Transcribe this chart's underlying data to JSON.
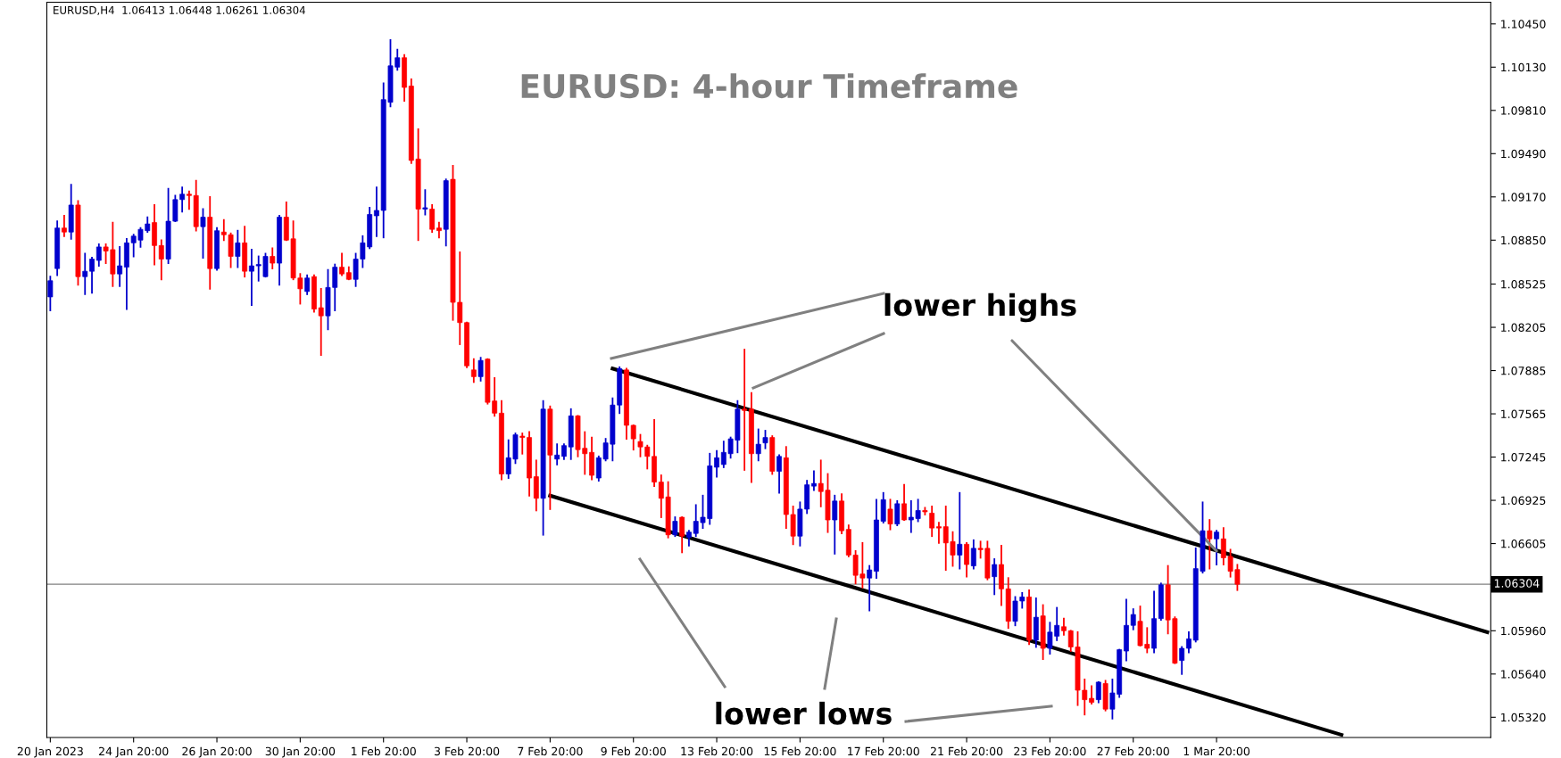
{
  "chart_data": {
    "type": "candlestick",
    "title": "EURUSD: 4-hour Timeframe",
    "annotations": [
      "EURUSD,H4  1.06413 1.06448 1.06261 1.06304",
      {
        "text": "lower highs",
        "x": "1 Mar 20:00",
        "y": 1.0655
      },
      "lower lows"
    ],
    "categories": [
      "20 Jan 2023",
      null,
      null,
      null,
      null,
      null,
      null,
      null,
      null,
      null,
      null,
      null,
      "24 Jan 20:00",
      null,
      null,
      null,
      null,
      null,
      null,
      null,
      null,
      null,
      null,
      null,
      "26 Jan 20:00",
      null,
      null,
      null,
      null,
      null,
      null,
      null,
      null,
      null,
      null,
      null,
      "30 Jan 20:00",
      null,
      null,
      null,
      null,
      null,
      null,
      null,
      null,
      null,
      null,
      null,
      "1 Feb 20:00",
      null,
      null,
      null,
      null,
      null,
      null,
      null,
      null,
      null,
      null,
      null,
      "3 Feb 20:00",
      null,
      null,
      null,
      null,
      null,
      null,
      null,
      null,
      null,
      null,
      null,
      "7 Feb 20:00",
      null,
      null,
      null,
      null,
      null,
      null,
      null,
      null,
      null,
      null,
      null,
      "9 Feb 20:00",
      null,
      null,
      null,
      null,
      null,
      null,
      null,
      null,
      null,
      null,
      null,
      "13 Feb 20:00",
      null,
      null,
      null,
      null,
      null,
      null,
      null,
      null,
      null,
      null,
      null,
      "15 Feb 20:00",
      null,
      null,
      null,
      null,
      null,
      null,
      null,
      null,
      null,
      null,
      null,
      "17 Feb 20:00",
      null,
      null,
      null,
      null,
      null,
      null,
      null,
      null,
      null,
      null,
      null,
      "21 Feb 20:00",
      null,
      null,
      null,
      null,
      null,
      null,
      null,
      null,
      null,
      null,
      null,
      "23 Feb 20:00",
      null,
      null,
      null,
      null,
      null,
      null,
      null,
      null,
      null,
      null,
      null,
      "27 Feb 20:00",
      null,
      null,
      null,
      null,
      null,
      null,
      null,
      null,
      null,
      null,
      null,
      "1 Mar 20:00",
      null,
      null,
      null,
      null,
      null,
      null,
      null,
      null,
      null,
      null,
      null,
      null,
      null,
      null,
      null,
      null,
      null,
      null,
      null,
      null,
      null,
      null,
      null,
      null,
      null,
      null,
      null,
      null,
      null,
      null,
      null,
      null,
      null,
      null,
      null,
      null,
      null,
      null,
      null
    ],
    "ohlc": [
      [
        1.0843,
        1.0858,
        1.0833,
        1.0855
      ],
      [
        1.0864,
        1.0899,
        1.0859,
        1.0894
      ],
      [
        1.0894,
        1.0903,
        1.0888,
        1.0891
      ],
      [
        1.0891,
        1.0926,
        1.0886,
        1.0911
      ],
      [
        1.0911,
        1.0914,
        1.0852,
        1.0858
      ],
      [
        1.0858,
        1.0875,
        1.0845,
        1.0862
      ],
      [
        1.0862,
        1.0872,
        1.0846,
        1.0871
      ],
      [
        1.087,
        1.0882,
        1.0866,
        1.088
      ],
      [
        1.088,
        1.0882,
        1.0868,
        1.0877
      ],
      [
        1.0878,
        1.0898,
        1.0851,
        1.086
      ],
      [
        1.086,
        1.088,
        1.0851,
        1.0866
      ],
      [
        1.0865,
        1.0886,
        1.0834,
        1.0883
      ],
      [
        1.0883,
        1.0889,
        1.0873,
        1.0888
      ],
      [
        1.0885,
        1.0894,
        1.088,
        1.0893
      ],
      [
        1.0892,
        1.0902,
        1.0891,
        1.0897
      ],
      [
        1.0898,
        1.0911,
        1.0867,
        1.0881
      ],
      [
        1.0881,
        1.0885,
        1.0856,
        1.0871
      ],
      [
        1.0871,
        1.0923,
        1.0868,
        1.0899
      ],
      [
        1.0899,
        1.0918,
        1.0899,
        1.0915
      ],
      [
        1.0915,
        1.0924,
        1.0906,
        1.0919
      ],
      [
        1.0919,
        1.0921,
        1.0908,
        1.0918
      ],
      [
        1.0918,
        1.0929,
        1.0892,
        1.0895
      ],
      [
        1.0895,
        1.0908,
        1.0872,
        1.0902
      ],
      [
        1.0902,
        1.0917,
        1.0849,
        1.0864
      ],
      [
        1.0864,
        1.0894,
        1.0863,
        1.0892
      ],
      [
        1.0891,
        1.09,
        1.0885,
        1.0889
      ],
      [
        1.0889,
        1.089,
        1.0865,
        1.0873
      ],
      [
        1.0873,
        1.0892,
        1.0865,
        1.0883
      ],
      [
        1.0883,
        1.0895,
        1.0858,
        1.0862
      ],
      [
        1.0862,
        1.0878,
        1.0837,
        1.0866
      ],
      [
        1.0866,
        1.0873,
        1.0855,
        1.0867
      ],
      [
        1.0858,
        1.0875,
        1.0858,
        1.0873
      ],
      [
        1.0873,
        1.0879,
        1.0864,
        1.0868
      ],
      [
        1.0868,
        1.0903,
        1.0852,
        1.0902
      ],
      [
        1.0902,
        1.0913,
        1.0885,
        1.0885
      ],
      [
        1.0886,
        1.0899,
        1.0856,
        1.0857
      ],
      [
        1.0857,
        1.086,
        1.0838,
        1.0849
      ],
      [
        1.0847,
        1.0859,
        1.0845,
        1.0857
      ],
      [
        1.0858,
        1.0859,
        1.0832,
        1.0834
      ],
      [
        1.0835,
        1.0849,
        1.08,
        1.0829
      ],
      [
        1.0829,
        1.0863,
        1.0819,
        1.085
      ],
      [
        1.085,
        1.0867,
        1.0833,
        1.0865
      ],
      [
        1.0865,
        1.0875,
        1.0859,
        1.086
      ],
      [
        1.0861,
        1.0865,
        1.0856,
        1.0856
      ],
      [
        1.0856,
        1.0875,
        1.0851,
        1.0871
      ],
      [
        1.0871,
        1.0888,
        1.0865,
        1.0883
      ],
      [
        1.088,
        1.0909,
        1.0879,
        1.0904
      ],
      [
        1.0903,
        1.0924,
        1.0888,
        1.0907
      ],
      [
        1.0907,
        1.1001,
        1.0887,
        1.0989
      ],
      [
        1.0987,
        1.1033,
        1.0984,
        1.1014
      ],
      [
        1.1013,
        1.1026,
        1.1011,
        1.102
      ],
      [
        1.102,
        1.1022,
        1.0988,
        1.0998
      ],
      [
        1.0999,
        1.1004,
        1.0942,
        1.0944
      ],
      [
        1.0945,
        1.0967,
        1.0885,
        1.0908
      ],
      [
        1.0908,
        1.0922,
        1.0904,
        1.0909
      ],
      [
        1.0908,
        1.0911,
        1.0891,
        1.0893
      ],
      [
        1.0894,
        1.0898,
        1.0887,
        1.0892
      ],
      [
        1.0893,
        1.093,
        1.0881,
        1.0929
      ],
      [
        1.093,
        1.094,
        1.0826,
        1.0839
      ],
      [
        1.0839,
        1.0876,
        1.0808,
        1.0824
      ],
      [
        1.0824,
        1.0824,
        1.0791,
        1.0792
      ],
      [
        1.0789,
        1.0797,
        1.078,
        1.0784
      ],
      [
        1.0784,
        1.0798,
        1.0781,
        1.0796
      ],
      [
        1.0797,
        1.0797,
        1.0764,
        1.0765
      ],
      [
        1.0766,
        1.0783,
        1.0755,
        1.0757
      ],
      [
        1.0757,
        1.0766,
        1.0708,
        1.0712
      ],
      [
        1.0712,
        1.0737,
        1.0709,
        1.0724
      ],
      [
        1.0723,
        1.0742,
        1.072,
        1.0741
      ],
      [
        1.074,
        1.0742,
        1.0727,
        1.0739
      ],
      [
        1.0739,
        1.0743,
        1.0696,
        1.0709
      ],
      [
        1.071,
        1.0722,
        1.0685,
        1.0694
      ],
      [
        1.0694,
        1.0766,
        1.0667,
        1.076
      ],
      [
        1.076,
        1.0762,
        1.0686,
        1.0726
      ],
      [
        1.0723,
        1.0734,
        1.0719,
        1.0726
      ],
      [
        1.0725,
        1.0734,
        1.0723,
        1.0733
      ],
      [
        1.0732,
        1.076,
        1.0723,
        1.0755
      ],
      [
        1.0755,
        1.0755,
        1.0725,
        1.073
      ],
      [
        1.0731,
        1.0743,
        1.0712,
        1.0727
      ],
      [
        1.0728,
        1.0739,
        1.0708,
        1.0711
      ],
      [
        1.0709,
        1.0725,
        1.0707,
        1.0724
      ],
      [
        1.0723,
        1.0738,
        1.0722,
        1.0735
      ],
      [
        1.0734,
        1.0768,
        1.0722,
        1.0763
      ],
      [
        1.0763,
        1.0791,
        1.0757,
        1.079
      ],
      [
        1.0789,
        1.079,
        1.0738,
        1.0748
      ],
      [
        1.0748,
        1.0748,
        1.073,
        1.0738
      ],
      [
        1.0736,
        1.0741,
        1.0725,
        1.0732
      ],
      [
        1.0732,
        1.0733,
        1.0716,
        1.0725
      ],
      [
        1.0725,
        1.0752,
        1.0703,
        1.0706
      ],
      [
        1.0706,
        1.0711,
        1.068,
        1.0694
      ],
      [
        1.0695,
        1.0706,
        1.0665,
        1.0667
      ],
      [
        1.0667,
        1.068,
        1.0666,
        1.0677
      ],
      [
        1.068,
        1.068,
        1.0654,
        1.0666
      ],
      [
        1.0665,
        1.067,
        1.0659,
        1.0669
      ],
      [
        1.0668,
        1.0689,
        1.0666,
        1.0677
      ],
      [
        1.0676,
        1.0696,
        1.0672,
        1.068
      ],
      [
        1.0679,
        1.0727,
        1.0675,
        1.0718
      ],
      [
        1.0717,
        1.0729,
        1.071,
        1.0724
      ],
      [
        1.0719,
        1.0736,
        1.0717,
        1.0728
      ],
      [
        1.0727,
        1.0739,
        1.0724,
        1.0738
      ],
      [
        1.0737,
        1.0766,
        1.0728,
        1.076
      ],
      [
        1.076,
        1.0804,
        1.0715,
        1.0759
      ],
      [
        1.076,
        1.0772,
        1.0706,
        1.0727
      ],
      [
        1.0727,
        1.0745,
        1.0722,
        1.0734
      ],
      [
        1.0735,
        1.0744,
        1.0731,
        1.0739
      ],
      [
        1.0739,
        1.074,
        1.0712,
        1.0714
      ],
      [
        1.0714,
        1.0726,
        1.0698,
        1.0725
      ],
      [
        1.0724,
        1.0732,
        1.0672,
        1.0682
      ],
      [
        1.0682,
        1.0688,
        1.066,
        1.0666
      ],
      [
        1.0666,
        1.0691,
        1.0659,
        1.0686
      ],
      [
        1.0686,
        1.0707,
        1.0683,
        1.0704
      ],
      [
        1.0703,
        1.0714,
        1.07,
        1.0705
      ],
      [
        1.0705,
        1.0722,
        1.0688,
        1.0699
      ],
      [
        1.07,
        1.0712,
        1.0669,
        1.0678
      ],
      [
        1.0678,
        1.0696,
        1.0653,
        1.0692
      ],
      [
        1.0692,
        1.0697,
        1.0668,
        1.067
      ],
      [
        1.0671,
        1.0674,
        1.0651,
        1.0652
      ],
      [
        1.0652,
        1.0655,
        1.0631,
        1.0637
      ],
      [
        1.0638,
        1.0661,
        1.0628,
        1.0635
      ],
      [
        1.0635,
        1.0644,
        1.0611,
        1.0641
      ],
      [
        1.064,
        1.0693,
        1.0635,
        1.0678
      ],
      [
        1.0677,
        1.0698,
        1.0676,
        1.0693
      ],
      [
        1.0686,
        1.0693,
        1.0671,
        1.0675
      ],
      [
        1.0675,
        1.0692,
        1.0674,
        1.069
      ],
      [
        1.069,
        1.0704,
        1.0678,
        1.0678
      ],
      [
        1.0678,
        1.0692,
        1.0669,
        1.068
      ],
      [
        1.0679,
        1.0693,
        1.0677,
        1.0685
      ],
      [
        1.0685,
        1.0687,
        1.0682,
        1.0684
      ],
      [
        1.0683,
        1.0688,
        1.0666,
        1.0672
      ],
      [
        1.0673,
        1.0676,
        1.0661,
        1.0672
      ],
      [
        1.0673,
        1.0688,
        1.0641,
        1.0661
      ],
      [
        1.0662,
        1.0669,
        1.0644,
        1.0652
      ],
      [
        1.0652,
        1.0698,
        1.0642,
        1.066
      ],
      [
        1.066,
        1.0661,
        1.0636,
        1.0645
      ],
      [
        1.0644,
        1.0663,
        1.0642,
        1.0657
      ],
      [
        1.0657,
        1.0662,
        1.065,
        1.0656
      ],
      [
        1.0657,
        1.0662,
        1.0634,
        1.0635
      ],
      [
        1.0636,
        1.0649,
        1.0623,
        1.0645
      ],
      [
        1.0645,
        1.0659,
        1.0615,
        1.0627
      ],
      [
        1.0627,
        1.0635,
        1.0598,
        1.0603
      ],
      [
        1.0603,
        1.0621,
        1.06,
        1.0618
      ],
      [
        1.0618,
        1.0624,
        1.0613,
        1.0621
      ],
      [
        1.0621,
        1.0626,
        1.0586,
        1.0589
      ],
      [
        1.0589,
        1.062,
        1.0584,
        1.0606
      ],
      [
        1.0607,
        1.0615,
        1.0575,
        1.0583
      ],
      [
        1.0583,
        1.0602,
        1.0579,
        1.0595
      ],
      [
        1.0592,
        1.0613,
        1.0589,
        1.06
      ],
      [
        1.0599,
        1.0605,
        1.0593,
        1.0596
      ],
      [
        1.0596,
        1.0596,
        1.0581,
        1.0584
      ],
      [
        1.0584,
        1.0595,
        1.0541,
        1.0552
      ],
      [
        1.0552,
        1.056,
        1.0534,
        1.0545
      ],
      [
        1.0546,
        1.0555,
        1.0542,
        1.0543
      ],
      [
        1.0545,
        1.0558,
        1.0543,
        1.0558
      ],
      [
        1.0557,
        1.0559,
        1.0537,
        1.0538
      ],
      [
        1.0538,
        1.056,
        1.0531,
        1.055
      ],
      [
        1.0549,
        1.0582,
        1.0547,
        1.0582
      ],
      [
        1.0581,
        1.0619,
        1.0574,
        1.06
      ],
      [
        1.06,
        1.0612,
        1.0597,
        1.0608
      ],
      [
        1.0603,
        1.0614,
        1.0585,
        1.0585
      ],
      [
        1.0586,
        1.0598,
        1.058,
        1.0583
      ],
      [
        1.0583,
        1.0625,
        1.058,
        1.0605
      ],
      [
        1.0605,
        1.0631,
        1.0604,
        1.063
      ],
      [
        1.063,
        1.0644,
        1.0594,
        1.0604
      ],
      [
        1.0605,
        1.0606,
        1.0572,
        1.0572
      ],
      [
        1.0574,
        1.0584,
        1.0564,
        1.0583
      ],
      [
        1.0583,
        1.0595,
        1.058,
        1.059
      ],
      [
        1.0589,
        1.0657,
        1.0588,
        1.0642
      ],
      [
        1.064,
        1.0691,
        1.0639,
        1.067
      ],
      [
        1.067,
        1.0678,
        1.0642,
        1.0664
      ],
      [
        1.0664,
        1.067,
        1.0645,
        1.0669
      ],
      [
        1.0664,
        1.0672,
        1.0645,
        1.065
      ],
      [
        1.0651,
        1.0656,
        1.0636,
        1.064
      ],
      [
        1.06413,
        1.06448,
        1.06261,
        1.06304
      ],
      null,
      null,
      null,
      null,
      null,
      null,
      null,
      null,
      null,
      null,
      null,
      null,
      null,
      null,
      null,
      null,
      null,
      null,
      null,
      null,
      null,
      null,
      null,
      null,
      null,
      null,
      null,
      null,
      null,
      null,
      null,
      null,
      null,
      null,
      null,
      null
    ],
    "colors": [
      "#0000cd",
      "#0000cd",
      "#ff0000",
      "#0000cd",
      "#ff0000",
      "#0000cd",
      "#0000cd",
      "#0000cd",
      "#ff0000",
      "#ff0000",
      "#0000cd",
      "#0000cd",
      "#0000cd",
      "#0000cd",
      "#0000cd",
      "#ff0000",
      "#ff0000",
      "#0000cd",
      "#0000cd",
      "#0000cd",
      "#ff0000",
      "#ff0000",
      "#0000cd",
      "#ff0000",
      "#0000cd",
      "#ff0000",
      "#ff0000",
      "#0000cd",
      "#ff0000",
      "#0000cd",
      "#0000cd",
      "#0000cd",
      "#ff0000",
      "#0000cd",
      "#ff0000",
      "#ff0000",
      "#ff0000",
      "#0000cd",
      "#ff0000",
      "#ff0000",
      "#0000cd",
      "#0000cd",
      "#ff0000",
      "#ff0000",
      "#0000cd",
      "#0000cd",
      "#0000cd",
      "#0000cd",
      "#0000cd",
      "#0000cd",
      "#0000cd",
      "#ff0000",
      "#ff0000",
      "#ff0000",
      "#0000cd",
      "#ff0000",
      "#ff0000",
      "#0000cd",
      "#ff0000",
      "#ff0000",
      "#ff0000",
      "#ff0000",
      "#0000cd",
      "#ff0000",
      "#ff0000",
      "#ff0000",
      "#0000cd",
      "#0000cd",
      "#ff0000",
      "#ff0000",
      "#ff0000",
      "#0000cd",
      "#ff0000",
      "#0000cd",
      "#0000cd",
      "#0000cd",
      "#ff0000",
      "#ff0000",
      "#ff0000",
      "#0000cd",
      "#0000cd",
      "#0000cd",
      "#0000cd",
      "#ff0000",
      "#ff0000",
      "#ff0000",
      "#ff0000",
      "#ff0000",
      "#ff0000",
      "#ff0000",
      "#0000cd",
      "#ff0000",
      "#0000cd",
      "#0000cd",
      "#0000cd",
      "#0000cd",
      "#0000cd",
      "#0000cd",
      "#0000cd",
      "#0000cd",
      "#ff0000",
      "#ff0000",
      "#0000cd",
      "#0000cd",
      "#ff0000",
      "#0000cd",
      "#ff0000",
      "#ff0000",
      "#0000cd",
      "#0000cd",
      "#0000cd",
      "#ff0000",
      "#ff0000",
      "#0000cd",
      "#ff0000",
      "#ff0000",
      "#ff0000",
      "#ff0000",
      "#0000cd",
      "#0000cd",
      "#0000cd",
      "#ff0000",
      "#0000cd",
      "#ff0000",
      "#0000cd",
      "#0000cd",
      "#ff0000",
      "#ff0000",
      "#ff0000",
      "#ff0000",
      "#ff0000",
      "#0000cd",
      "#ff0000",
      "#0000cd",
      "#ff0000",
      "#ff0000",
      "#0000cd",
      "#ff0000",
      "#ff0000",
      "#0000cd",
      "#0000cd",
      "#ff0000",
      "#0000cd",
      "#ff0000",
      "#0000cd",
      "#0000cd",
      "#ff0000",
      "#ff0000",
      "#ff0000",
      "#ff0000",
      "#ff0000",
      "#0000cd",
      "#ff0000",
      "#0000cd",
      "#0000cd",
      "#0000cd",
      "#0000cd",
      "#ff0000",
      "#ff0000",
      "#0000cd",
      "#0000cd",
      "#ff0000",
      "#ff0000",
      "#0000cd",
      "#0000cd",
      "#0000cd",
      "#0000cd",
      "#ff0000",
      "#0000cd",
      "#ff0000",
      "#ff0000",
      "#ff0000",
      null,
      null,
      null,
      null,
      null,
      null,
      null,
      null,
      null,
      null,
      null,
      null,
      null,
      null,
      null,
      null,
      null,
      null,
      null,
      null,
      null,
      null,
      null,
      null,
      null,
      null,
      null,
      null,
      null,
      null,
      null,
      null,
      null,
      null,
      null,
      null
    ],
    "series": [
      {
        "type": "line",
        "color": "#000000",
        "values": [
          null,
          null,
          null,
          null,
          null,
          null,
          null,
          null,
          null,
          null,
          null,
          null,
          null,
          null,
          null,
          null,
          null,
          null,
          null,
          null,
          null,
          null,
          null,
          null,
          null,
          null,
          null,
          null,
          null,
          null,
          null,
          null,
          null,
          null,
          null,
          null,
          null,
          null,
          null,
          null,
          null,
          null,
          null,
          null,
          null,
          null,
          null,
          null,
          null,
          null,
          null,
          null,
          null,
          null,
          null,
          null,
          null,
          null,
          null,
          null,
          null,
          null,
          null,
          null,
          null,
          null,
          null,
          null,
          null,
          null,
          null,
          null,
          null,
          null,
          null,
          null,
          null,
          null,
          null,
          null,
          null,
          1.079,
          null,
          null,
          null,
          null,
          null,
          null,
          null,
          null,
          null,
          null,
          null,
          null,
          null,
          null,
          null,
          null,
          null,
          null,
          null,
          null,
          null,
          null,
          null,
          null,
          null,
          null,
          null,
          null,
          null,
          null,
          null,
          null,
          null,
          null,
          null,
          null,
          null,
          null,
          null,
          null,
          null,
          null,
          null,
          null,
          null,
          null,
          null,
          null,
          null,
          null,
          null,
          null,
          null,
          null,
          null,
          null,
          null,
          null,
          null,
          null,
          null,
          null,
          null,
          null,
          null,
          null,
          null,
          null,
          null,
          null,
          null,
          null,
          null,
          null,
          null,
          null,
          null,
          null,
          null,
          null,
          null,
          null,
          null,
          null,
          null,
          null,
          null,
          null,
          null,
          null,
          null,
          null,
          null,
          null,
          null,
          null,
          null,
          null,
          null,
          null,
          null,
          null,
          null,
          null,
          null,
          null,
          null,
          null,
          null,
          null,
          null,
          null,
          null,
          null,
          null,
          null,
          null,
          null,
          null,
          null,
          null,
          null,
          null,
          null,
          null,
          1.0595
        ]
      },
      {
        "type": "line",
        "color": "#000000",
        "values": [
          null,
          null,
          null,
          null,
          null,
          null,
          null,
          null,
          null,
          null,
          null,
          null,
          null,
          null,
          null,
          null,
          null,
          null,
          null,
          null,
          null,
          null,
          null,
          null,
          null,
          null,
          null,
          null,
          null,
          null,
          null,
          null,
          null,
          null,
          null,
          null,
          null,
          null,
          null,
          null,
          null,
          null,
          null,
          null,
          null,
          null,
          null,
          null,
          null,
          null,
          null,
          null,
          null,
          null,
          null,
          null,
          null,
          null,
          null,
          null,
          null,
          null,
          null,
          null,
          null,
          null,
          null,
          null,
          null,
          null,
          null,
          null,
          1.0696,
          null,
          null,
          null,
          null,
          null,
          null,
          null,
          null,
          null,
          null,
          null,
          null,
          null,
          null,
          null,
          null,
          null,
          null,
          null,
          null,
          null,
          null,
          null,
          null,
          null,
          null,
          null,
          null,
          null,
          null,
          null,
          null,
          null,
          null,
          null,
          null,
          null,
          null,
          null,
          null,
          null,
          null,
          null,
          null,
          null,
          null,
          null,
          null,
          null,
          null,
          null,
          null,
          null,
          null,
          null,
          null,
          null,
          null,
          null,
          null,
          null,
          null,
          null,
          null,
          null,
          null,
          null,
          null,
          null,
          null,
          null,
          null,
          null,
          null,
          null,
          null,
          null,
          null,
          null,
          null,
          null,
          null,
          null,
          null,
          null,
          null,
          null,
          null,
          null,
          null,
          null,
          null,
          null,
          null,
          null,
          null,
          null,
          null,
          null,
          null,
          null,
          null,
          null,
          null,
          null,
          null,
          null,
          null,
          null,
          null,
          null,
          null,
          null,
          1.0519,
          null,
          null,
          null,
          null,
          null,
          null,
          null,
          null,
          null,
          null,
          null,
          null,
          null,
          null,
          null,
          null,
          null,
          null,
          null,
          null,
          null
        ]
      }
    ],
    "ref_lines": [
      {
        "axis": "y",
        "value": 1.06304,
        "label": "1.06304",
        "color": "#808080"
      }
    ],
    "ylim": [
      1.0517,
      1.1061
    ],
    "yticks": [
      {
        "value": 1.1045,
        "label": "1.10450"
      },
      {
        "value": 1.1013,
        "label": "1.10130"
      },
      {
        "value": 1.0981,
        "label": "1.09810"
      },
      {
        "value": 1.0949,
        "label": "1.09490"
      },
      {
        "value": 1.0917,
        "label": "1.09170"
      },
      {
        "value": 1.0885,
        "label": "1.08850"
      },
      {
        "value": 1.08525,
        "label": "1.08525"
      },
      {
        "value": 1.08205,
        "label": "1.08205"
      },
      {
        "value": 1.07885,
        "label": "1.07885"
      },
      {
        "value": 1.07565,
        "label": "1.07565"
      },
      {
        "value": 1.07245,
        "label": "1.07245"
      },
      {
        "value": 1.06925,
        "label": "1.06925"
      },
      {
        "value": 1.06605,
        "label": "1.06605"
      },
      {
        "value": 1.0596,
        "label": "1.05960"
      },
      {
        "value": 1.0564,
        "label": "1.05640"
      },
      {
        "value": 1.0532,
        "label": "1.05320"
      }
    ],
    "grid": false,
    "legend": false
  }
}
